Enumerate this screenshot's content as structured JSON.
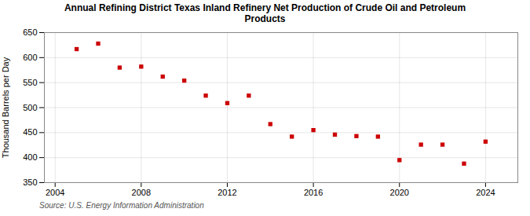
{
  "chart_data": {
    "type": "scatter",
    "title": "Annual Refining District Texas Inland Refinery Net Production of Crude Oil and Petroleum\nProducts",
    "ylabel": "Thousand Barrels per Day",
    "source": "Source: U.S. Energy Information Administration",
    "x": [
      2005,
      2006,
      2007,
      2008,
      2009,
      2010,
      2011,
      2012,
      2013,
      2014,
      2015,
      2016,
      2017,
      2018,
      2019,
      2020,
      2021,
      2022,
      2023,
      2024
    ],
    "values": [
      617,
      628,
      580,
      582,
      562,
      554,
      524,
      509,
      524,
      467,
      442,
      455,
      446,
      443,
      442,
      395,
      426,
      426,
      388,
      432
    ],
    "color": "#cc0000",
    "marker": "square",
    "xlim": [
      2003.5,
      2025.5
    ],
    "xticks": [
      2004,
      2008,
      2012,
      2016,
      2020,
      2024
    ],
    "ylim": [
      350,
      650
    ],
    "yticks": [
      350,
      400,
      450,
      500,
      550,
      600,
      650
    ],
    "grid": true
  }
}
